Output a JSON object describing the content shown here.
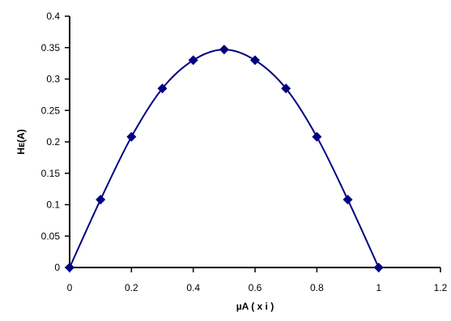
{
  "chart_data": {
    "type": "scatter",
    "xlabel": "µA ( x i )",
    "ylabel": "Hᴇ(A)",
    "xlim": [
      0,
      1.2
    ],
    "ylim": [
      0,
      0.4
    ],
    "x_ticks": [
      "0",
      "0.2",
      "0.4",
      "0.6",
      "0.8",
      "1",
      "1.2"
    ],
    "y_ticks": [
      "0",
      "0.05",
      "0.1",
      "0.15",
      "0.2",
      "0.25",
      "0.3",
      "0.35",
      "0.4"
    ],
    "grid": false,
    "legend": "none",
    "series": [
      {
        "marker": "diamond",
        "line": "smoothed",
        "color": "#000080",
        "x": [
          0,
          0.1,
          0.2,
          0.3,
          0.4,
          0.5,
          0.6,
          0.7,
          0.8,
          0.9,
          1.0
        ],
        "y": [
          0,
          0.108,
          0.208,
          0.285,
          0.33,
          0.347,
          0.33,
          0.285,
          0.208,
          0.108,
          0
        ]
      }
    ]
  }
}
